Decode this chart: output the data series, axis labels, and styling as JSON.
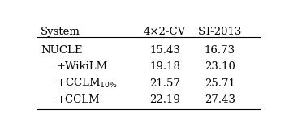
{
  "col_headers": [
    "System",
    "4×2-CV",
    "ST-2013"
  ],
  "rows": [
    [
      "NUCLE",
      "15.43",
      "16.73",
      false
    ],
    [
      "+WikiLM",
      "19.18",
      "23.10",
      true
    ],
    [
      "+CCLM_sub",
      "21.57",
      "25.71",
      true
    ],
    [
      "+CCLM",
      "22.19",
      "27.43",
      true
    ]
  ],
  "background_color": "#ffffff",
  "text_color": "#000000",
  "font_size": 9.5,
  "header_font_size": 9.5
}
